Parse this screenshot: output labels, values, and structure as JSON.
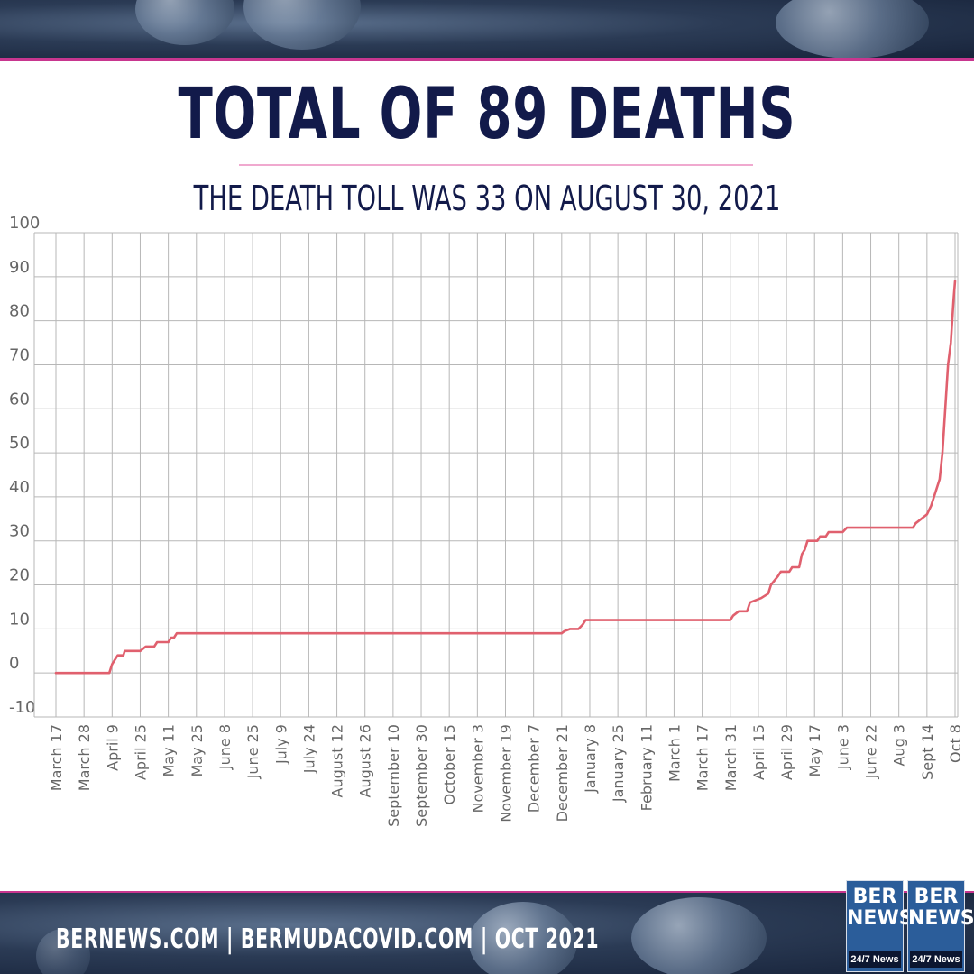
{
  "headline": "TOTAL OF 89 DEATHS",
  "subheadline": "THE DEATH TOLL WAS 33 ON AUGUST 30, 2021",
  "footer": {
    "text": "BERNEWS.COM  |  BERMUDACOVID.COM  |  OCT  2021"
  },
  "logo": {
    "brand": "BER NEWS",
    "tag": "24/7 News"
  },
  "colors": {
    "line": "#e0606e",
    "headline": "#121a4a",
    "accent": "#c8368f",
    "grid": "#b7b7b7",
    "tick_text": "#666666"
  },
  "chart_data": {
    "type": "line",
    "title": "TOTAL OF 89 DEATHS",
    "subtitle": "THE DEATH TOLL WAS 33 ON AUGUST 30, 2021",
    "xlabel": "",
    "ylabel": "",
    "ylim": [
      -10,
      100
    ],
    "yticks": [
      100,
      90,
      80,
      70,
      60,
      50,
      40,
      30,
      20,
      10,
      0,
      -10
    ],
    "grid": true,
    "legend": "none",
    "x_categories": [
      "March 17",
      "March 28",
      "April 9",
      "April 25",
      "May 11",
      "May 25",
      "June 8",
      "June 25",
      "July 9",
      "July 24",
      "August 12",
      "August 26",
      "September 10",
      "September 30",
      "October 15",
      "November 3",
      "November 19",
      "December 7",
      "December 21",
      "January 8",
      "January 25",
      "February 11",
      "March 1",
      "March 17",
      "March 31",
      "April 15",
      "April 29",
      "May 17",
      "June 3",
      "June 22",
      "Aug 3",
      "Sept 14",
      "Oct 8"
    ],
    "series": [
      {
        "points": [
          [
            0,
            0
          ],
          [
            1,
            0
          ],
          [
            1.9,
            0
          ],
          [
            2.0,
            2
          ],
          [
            2.1,
            3
          ],
          [
            2.2,
            4
          ],
          [
            2.4,
            4
          ],
          [
            2.45,
            5
          ],
          [
            3.0,
            5
          ],
          [
            3.2,
            6
          ],
          [
            3.5,
            6
          ],
          [
            3.6,
            7
          ],
          [
            4.0,
            7
          ],
          [
            4.1,
            8
          ],
          [
            4.2,
            8
          ],
          [
            4.3,
            9
          ],
          [
            6,
            9
          ],
          [
            9,
            9
          ],
          [
            12,
            9
          ],
          [
            15,
            9
          ],
          [
            18,
            9
          ],
          [
            18.1,
            9.5
          ],
          [
            18.3,
            10
          ],
          [
            18.6,
            10
          ],
          [
            18.75,
            11
          ],
          [
            18.85,
            12
          ],
          [
            20,
            12
          ],
          [
            22,
            12
          ],
          [
            24,
            12
          ],
          [
            24.1,
            13
          ],
          [
            24.3,
            14
          ],
          [
            24.6,
            14
          ],
          [
            24.7,
            16
          ],
          [
            25.1,
            17
          ],
          [
            25.35,
            18
          ],
          [
            25.45,
            20
          ],
          [
            25.7,
            22
          ],
          [
            25.8,
            23
          ],
          [
            26.1,
            23
          ],
          [
            26.2,
            24
          ],
          [
            26.45,
            24
          ],
          [
            26.55,
            27
          ],
          [
            26.65,
            28
          ],
          [
            26.75,
            30
          ],
          [
            27.1,
            30
          ],
          [
            27.2,
            31
          ],
          [
            27.4,
            31
          ],
          [
            27.5,
            32
          ],
          [
            28.0,
            32
          ],
          [
            28.15,
            33
          ],
          [
            29,
            33
          ],
          [
            30,
            33
          ],
          [
            30.5,
            33
          ],
          [
            30.6,
            34
          ],
          [
            30.8,
            35
          ],
          [
            31.0,
            36
          ],
          [
            31.15,
            38
          ],
          [
            31.3,
            41
          ],
          [
            31.45,
            44
          ],
          [
            31.55,
            50
          ],
          [
            31.65,
            60
          ],
          [
            31.75,
            70
          ],
          [
            31.85,
            75
          ],
          [
            31.95,
            85
          ],
          [
            32.0,
            89
          ]
        ]
      }
    ]
  }
}
